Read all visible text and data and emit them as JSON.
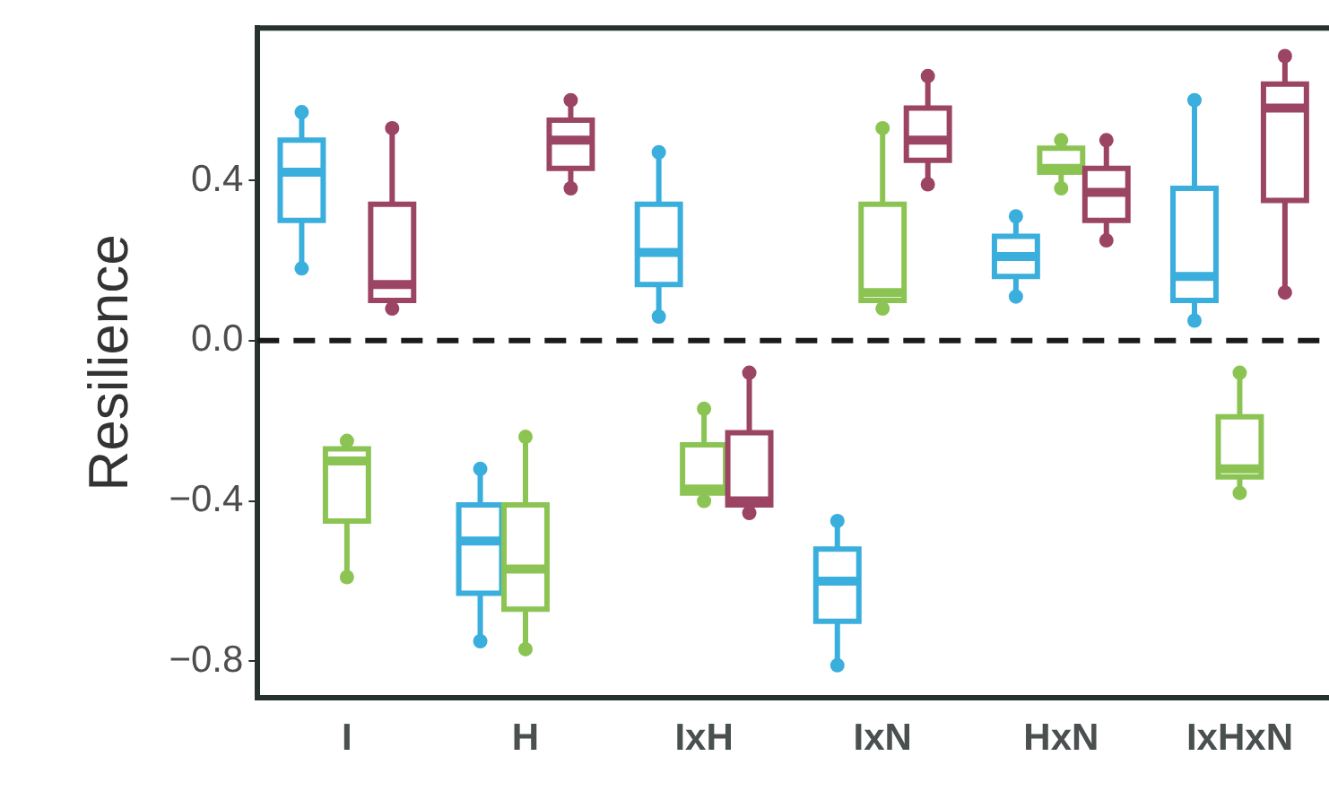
{
  "chart_data": {
    "type": "box",
    "ylabel": "Resilience",
    "categories": [
      "I",
      "H",
      "IxH",
      "IxN",
      "HxN",
      "IxHxN"
    ],
    "ylim": [
      -0.89,
      0.78
    ],
    "yticks": [
      {
        "value": -0.8,
        "label": "−0.8"
      },
      {
        "value": -0.4,
        "label": "−0.4"
      },
      {
        "value": 0,
        "label": "0.0"
      },
      {
        "value": 0.4,
        "label": "0.4"
      }
    ],
    "grid": false,
    "ref_lines": [
      {
        "axis": "y",
        "value": 0,
        "color": "#1a1a1a",
        "line_style": "dashed"
      }
    ],
    "series": [
      {
        "color": "#3aaedc",
        "boxes": [
          {
            "low": 0.18,
            "q1": 0.3,
            "median": 0.42,
            "q3": 0.5,
            "high": 0.57,
            "outliers": [
              0.18,
              0.57
            ]
          },
          {
            "low": -0.75,
            "q1": -0.63,
            "median": -0.5,
            "q3": -0.41,
            "high": -0.32,
            "outliers": [
              -0.75,
              -0.32
            ]
          },
          {
            "low": 0.06,
            "q1": 0.14,
            "median": 0.22,
            "q3": 0.34,
            "high": 0.47,
            "outliers": [
              0.06,
              0.47
            ]
          },
          {
            "low": -0.81,
            "q1": -0.7,
            "median": -0.6,
            "q3": -0.52,
            "high": -0.45,
            "outliers": [
              -0.81,
              -0.45
            ]
          },
          {
            "low": 0.11,
            "q1": 0.16,
            "median": 0.21,
            "q3": 0.26,
            "high": 0.31,
            "outliers": [
              0.11,
              0.31
            ]
          },
          {
            "low": 0.05,
            "q1": 0.1,
            "median": 0.16,
            "q3": 0.38,
            "high": 0.6,
            "outliers": [
              0.05,
              0.6
            ]
          }
        ]
      },
      {
        "color": "#8cc454",
        "boxes": [
          {
            "low": -0.59,
            "q1": -0.45,
            "median": -0.3,
            "q3": -0.27,
            "high": -0.25,
            "outliers": [
              -0.59,
              -0.25
            ]
          },
          {
            "low": -0.77,
            "q1": -0.67,
            "median": -0.57,
            "q3": -0.41,
            "high": -0.24,
            "outliers": [
              -0.77,
              -0.24
            ]
          },
          {
            "low": -0.4,
            "q1": -0.38,
            "median": -0.37,
            "q3": -0.26,
            "high": -0.17,
            "outliers": [
              -0.4,
              -0.17
            ]
          },
          {
            "low": 0.08,
            "q1": 0.1,
            "median": 0.12,
            "q3": 0.34,
            "high": 0.53,
            "outliers": [
              0.08,
              0.53
            ]
          },
          {
            "low": 0.38,
            "q1": 0.42,
            "median": 0.43,
            "q3": 0.48,
            "high": 0.5,
            "outliers": [
              0.38,
              0.5
            ]
          },
          {
            "low": -0.38,
            "q1": -0.34,
            "median": -0.32,
            "q3": -0.19,
            "high": -0.08,
            "outliers": [
              -0.38,
              -0.08
            ]
          }
        ]
      },
      {
        "color": "#9b4463",
        "boxes": [
          {
            "low": 0.08,
            "q1": 0.1,
            "median": 0.14,
            "q3": 0.34,
            "high": 0.53,
            "outliers": [
              0.08,
              0.53
            ]
          },
          {
            "low": 0.38,
            "q1": 0.43,
            "median": 0.5,
            "q3": 0.55,
            "high": 0.6,
            "outliers": [
              0.38,
              0.6
            ]
          },
          {
            "low": -0.43,
            "q1": -0.41,
            "median": -0.4,
            "q3": -0.23,
            "high": -0.08,
            "outliers": [
              -0.43,
              -0.08
            ]
          },
          {
            "low": 0.39,
            "q1": 0.45,
            "median": 0.5,
            "q3": 0.58,
            "high": 0.66,
            "outliers": [
              0.39,
              0.66
            ]
          },
          {
            "low": 0.25,
            "q1": 0.3,
            "median": 0.37,
            "q3": 0.43,
            "high": 0.5,
            "outliers": [
              0.25,
              0.5
            ]
          },
          {
            "low": 0.12,
            "q1": 0.35,
            "median": 0.58,
            "q3": 0.64,
            "high": 0.71,
            "outliers": [
              0.12,
              0.71
            ]
          }
        ]
      }
    ]
  }
}
